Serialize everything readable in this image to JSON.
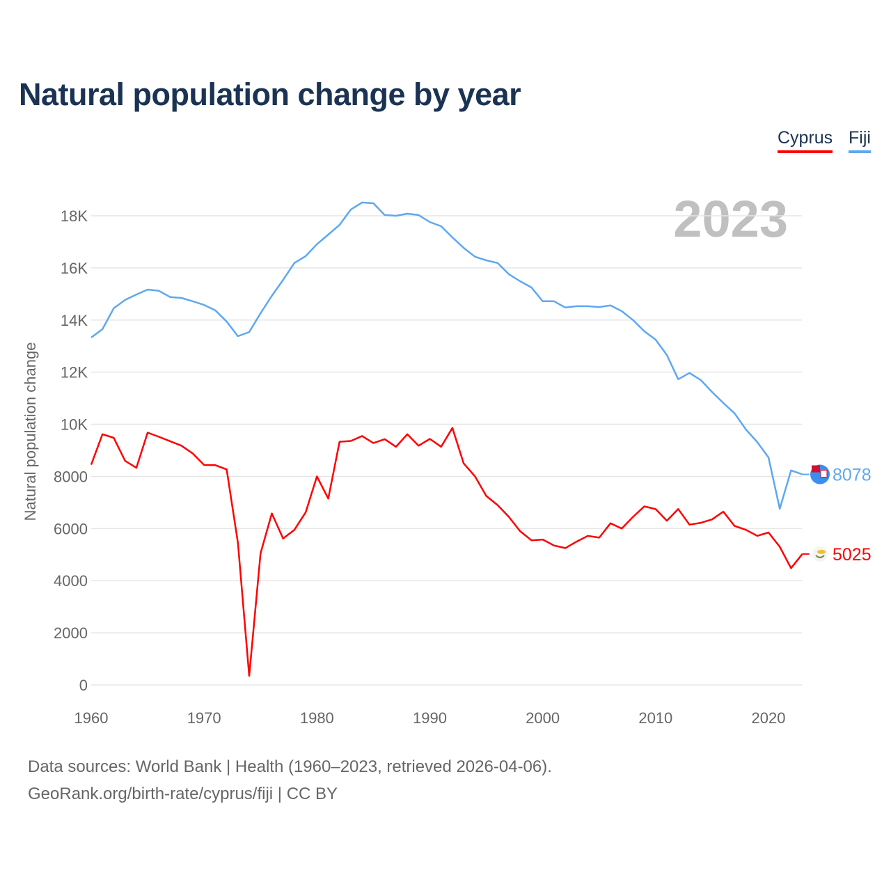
{
  "title": "Natural population change by year",
  "legend": [
    {
      "label": "Cyprus",
      "color": "#ff0000"
    },
    {
      "label": "Fiji",
      "color": "#5ea8f0"
    }
  ],
  "footer": {
    "line1": "Data sources: World Bank | Health (1960–2023, retrieved 2026-04-06).",
    "line2": "GeoRank.org/birth-rate/cyprus/fiji | CC BY"
  },
  "chart_data": {
    "type": "line",
    "title": "Natural population change by year",
    "xlabel": "",
    "ylabel": "Natural population change",
    "year_label": "2023",
    "xlim": [
      1960,
      2023
    ],
    "ylim": [
      0,
      18000
    ],
    "grid": true,
    "legend_position": "top-right",
    "x_ticks": [
      1960,
      1970,
      1980,
      1990,
      2000,
      2010,
      2020
    ],
    "y_ticks": [
      {
        "value": 0,
        "label": "0"
      },
      {
        "value": 2000,
        "label": "2000"
      },
      {
        "value": 4000,
        "label": "4000"
      },
      {
        "value": 6000,
        "label": "6000"
      },
      {
        "value": 8000,
        "label": "8000"
      },
      {
        "value": 10000,
        "label": "10K"
      },
      {
        "value": 12000,
        "label": "12K"
      },
      {
        "value": 14000,
        "label": "14K"
      },
      {
        "value": 16000,
        "label": "16K"
      },
      {
        "value": 18000,
        "label": "18K"
      }
    ],
    "x_start": 1960,
    "series": [
      {
        "name": "Fiji",
        "color": "#5ea8f0",
        "end_label": "8078",
        "flag": "fiji-flag",
        "values": [
          13330,
          13650,
          14450,
          14770,
          14980,
          15170,
          15120,
          14880,
          14850,
          14720,
          14580,
          14370,
          13940,
          13380,
          13540,
          14260,
          14930,
          15540,
          16190,
          16450,
          16910,
          17280,
          17650,
          18240,
          18510,
          18480,
          18030,
          18000,
          18080,
          18030,
          17760,
          17600,
          17170,
          16770,
          16430,
          16290,
          16190,
          15760,
          15490,
          15250,
          14720,
          14720,
          14480,
          14530,
          14530,
          14500,
          14560,
          14340,
          14000,
          13570,
          13250,
          12660,
          11730,
          11970,
          11700,
          11240,
          10820,
          10420,
          9800,
          9320,
          8730,
          6760,
          8230,
          8078
        ]
      },
      {
        "name": "Cyprus",
        "color": "#ff0000",
        "end_label": "5025",
        "flag": "cyprus-flag",
        "values": [
          8450,
          9620,
          9480,
          8600,
          8330,
          9680,
          9520,
          9350,
          9180,
          8880,
          8440,
          8430,
          8270,
          5450,
          350,
          5050,
          6580,
          5620,
          5950,
          6620,
          8000,
          7150,
          9330,
          9360,
          9550,
          9280,
          9430,
          9140,
          9620,
          9180,
          9440,
          9140,
          9860,
          8500,
          8000,
          7250,
          6900,
          6450,
          5900,
          5550,
          5580,
          5350,
          5250,
          5500,
          5720,
          5650,
          6200,
          6000,
          6450,
          6850,
          6750,
          6300,
          6750,
          6150,
          6220,
          6350,
          6650,
          6100,
          5950,
          5720,
          5850,
          5300,
          4480,
          5025
        ]
      }
    ]
  }
}
